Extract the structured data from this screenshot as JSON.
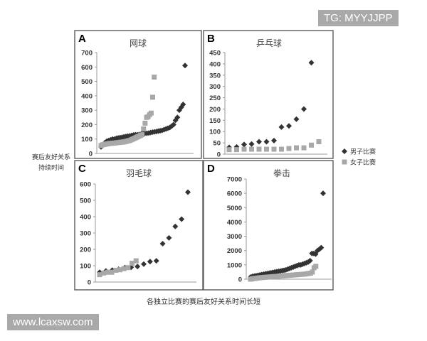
{
  "watermarks": {
    "top": "TG: MYYJJPP",
    "bottom": "www.lcaxsw.com"
  },
  "ylabel_lines": [
    "赛后友好关系",
    "持续时间"
  ],
  "xlabel": "各独立比赛的赛后友好关系时间长短",
  "legend": [
    {
      "name": "男子比赛",
      "marker": "diamond",
      "color": "#333333"
    },
    {
      "name": "女子比赛",
      "marker": "square",
      "color": "#a8a8a8"
    }
  ],
  "chart_data": [
    {
      "type": "scatter",
      "panel": "A",
      "title": "网球",
      "ylim": [
        0,
        700
      ],
      "yticks": [
        0,
        100,
        200,
        300,
        400,
        500,
        600,
        700
      ],
      "series": [
        {
          "name": "男子比赛",
          "values": [
            45,
            60,
            75,
            85,
            90,
            95,
            100,
            100,
            105,
            108,
            110,
            112,
            115,
            118,
            120,
            122,
            125,
            128,
            130,
            130,
            132,
            135,
            138,
            140,
            140,
            142,
            145,
            148,
            150,
            152,
            155,
            158,
            160,
            165,
            170,
            175,
            180,
            190,
            200,
            230,
            250,
            300,
            320,
            340,
            610
          ]
        },
        {
          "name": "女子比赛",
          "values": [
            55,
            60,
            62,
            65,
            66,
            68,
            70,
            70,
            72,
            72,
            74,
            75,
            76,
            78,
            78,
            80,
            82,
            85,
            88,
            90,
            95,
            100,
            105,
            110,
            115,
            120,
            125,
            130,
            170,
            210,
            250,
            255,
            270,
            280,
            390,
            530
          ]
        }
      ]
    },
    {
      "type": "scatter",
      "panel": "B",
      "title": "乒乓球",
      "ylim": [
        0,
        450
      ],
      "yticks": [
        0,
        50,
        100,
        150,
        200,
        250,
        300,
        350,
        400,
        450
      ],
      "series": [
        {
          "name": "男子比赛",
          "values": [
            30,
            32,
            43,
            45,
            55,
            55,
            60,
            120,
            125,
            155,
            200,
            405
          ]
        },
        {
          "name": "女子比赛",
          "values": [
            20,
            20,
            22,
            22,
            22,
            22,
            22,
            22,
            25,
            28,
            28,
            40,
            55
          ]
        }
      ]
    },
    {
      "type": "scatter",
      "panel": "C",
      "title": "羽毛球",
      "ylim": [
        0,
        600
      ],
      "yticks": [
        0,
        100,
        200,
        300,
        400,
        500,
        600
      ],
      "series": [
        {
          "name": "男子比赛",
          "values": [
            60,
            68,
            73,
            78,
            88,
            90,
            95,
            110,
            125,
            130,
            235,
            270,
            340,
            385,
            550
          ]
        },
        {
          "name": "女子比赛",
          "values": [
            45,
            55,
            60,
            60,
            72,
            75,
            82,
            88,
            115,
            130
          ]
        }
      ]
    },
    {
      "type": "scatter",
      "panel": "D",
      "title": "拳击",
      "ylim": [
        0,
        7000
      ],
      "yticks": [
        0,
        1000,
        2000,
        3000,
        4000,
        5000,
        6000,
        7000
      ],
      "series": [
        {
          "name": "男子比赛",
          "values": [
            150,
            200,
            220,
            250,
            270,
            300,
            320,
            350,
            380,
            400,
            420,
            450,
            480,
            500,
            520,
            550,
            570,
            600,
            620,
            650,
            700,
            750,
            800,
            850,
            900,
            950,
            1000,
            1000,
            1050,
            1100,
            1150,
            1200,
            1300,
            1800,
            1800,
            1750,
            2000,
            2100,
            2200,
            6000
          ]
        },
        {
          "name": "女子比赛",
          "values": [
            0,
            30,
            50,
            60,
            80,
            100,
            110,
            120,
            130,
            140,
            150,
            160,
            170,
            180,
            190,
            200,
            210,
            220,
            230,
            240,
            250,
            260,
            270,
            280,
            290,
            300,
            310,
            320,
            330,
            340,
            350,
            360,
            380,
            400,
            420,
            500,
            800,
            900
          ]
        }
      ]
    }
  ]
}
